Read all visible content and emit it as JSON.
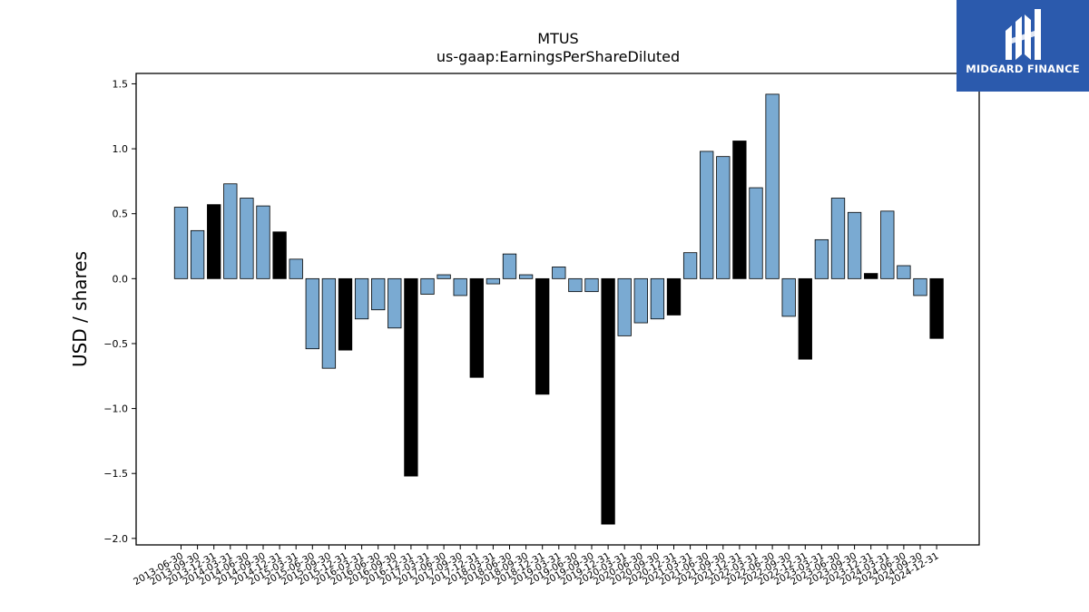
{
  "logo": {
    "text": "MIDGARD FINANCE",
    "icon": "midgard-logo-icon",
    "background": "#2b5aad"
  },
  "colors": {
    "bar": "#7aaad2",
    "bar_highlight": "#000000",
    "edge": "#000000"
  },
  "chart_data": {
    "type": "bar",
    "title": "MTUS",
    "subtitle": "us-gaap:EarningsPerShareDiluted",
    "xlabel": "",
    "ylabel": "USD / shares",
    "ylim": [
      -2.05,
      1.58
    ],
    "yticks": [
      1.5,
      1.0,
      0.5,
      0.0,
      -0.5,
      -1.0,
      -1.5,
      -2.0
    ],
    "ytick_labels": [
      "1.5",
      "1.0",
      "0.5",
      "0.0",
      "−0.5",
      "−1.0",
      "−1.5",
      "−2.0"
    ],
    "grid": false,
    "categories": [
      "2013-06-30",
      "2013-09-30",
      "2013-12-31",
      "2014-03-31",
      "2014-06-30",
      "2014-09-30",
      "2014-12-31",
      "2015-03-31",
      "2015-06-30",
      "2015-09-30",
      "2015-12-31",
      "2016-03-31",
      "2016-06-30",
      "2016-09-30",
      "2016-12-31",
      "2017-03-31",
      "2017-06-30",
      "2017-09-30",
      "2017-12-31",
      "2018-03-31",
      "2018-06-30",
      "2018-09-30",
      "2018-12-31",
      "2019-03-31",
      "2019-06-30",
      "2019-09-30",
      "2019-12-31",
      "2020-03-31",
      "2020-06-30",
      "2020-09-30",
      "2020-12-31",
      "2021-03-31",
      "2021-06-30",
      "2021-09-30",
      "2021-12-31",
      "2022-03-31",
      "2022-06-30",
      "2022-09-30",
      "2022-12-31",
      "2023-03-31",
      "2023-06-30",
      "2023-09-30",
      "2023-12-31",
      "2024-03-31",
      "2024-06-30",
      "2024-09-30",
      "2024-12-31"
    ],
    "values": [
      0.55,
      0.37,
      0.57,
      0.73,
      0.62,
      0.56,
      0.36,
      0.15,
      -0.54,
      -0.69,
      -0.55,
      -0.31,
      -0.24,
      -0.38,
      -1.52,
      -0.12,
      0.03,
      -0.13,
      -0.76,
      -0.04,
      0.19,
      0.03,
      -0.89,
      0.09,
      -0.1,
      -0.1,
      -1.89,
      -0.44,
      -0.34,
      -0.31,
      -0.28,
      0.2,
      0.98,
      0.94,
      1.06,
      0.7,
      1.42,
      -0.29,
      -0.62,
      0.3,
      0.62,
      0.51,
      0.04,
      0.52,
      0.1,
      -0.13,
      -0.46
    ],
    "highlight": [
      false,
      false,
      true,
      false,
      false,
      false,
      true,
      false,
      false,
      false,
      true,
      false,
      false,
      false,
      true,
      false,
      false,
      false,
      true,
      false,
      false,
      false,
      true,
      false,
      false,
      false,
      true,
      false,
      false,
      false,
      true,
      false,
      false,
      false,
      true,
      false,
      false,
      false,
      true,
      false,
      false,
      false,
      true,
      false,
      false,
      false,
      true
    ]
  }
}
